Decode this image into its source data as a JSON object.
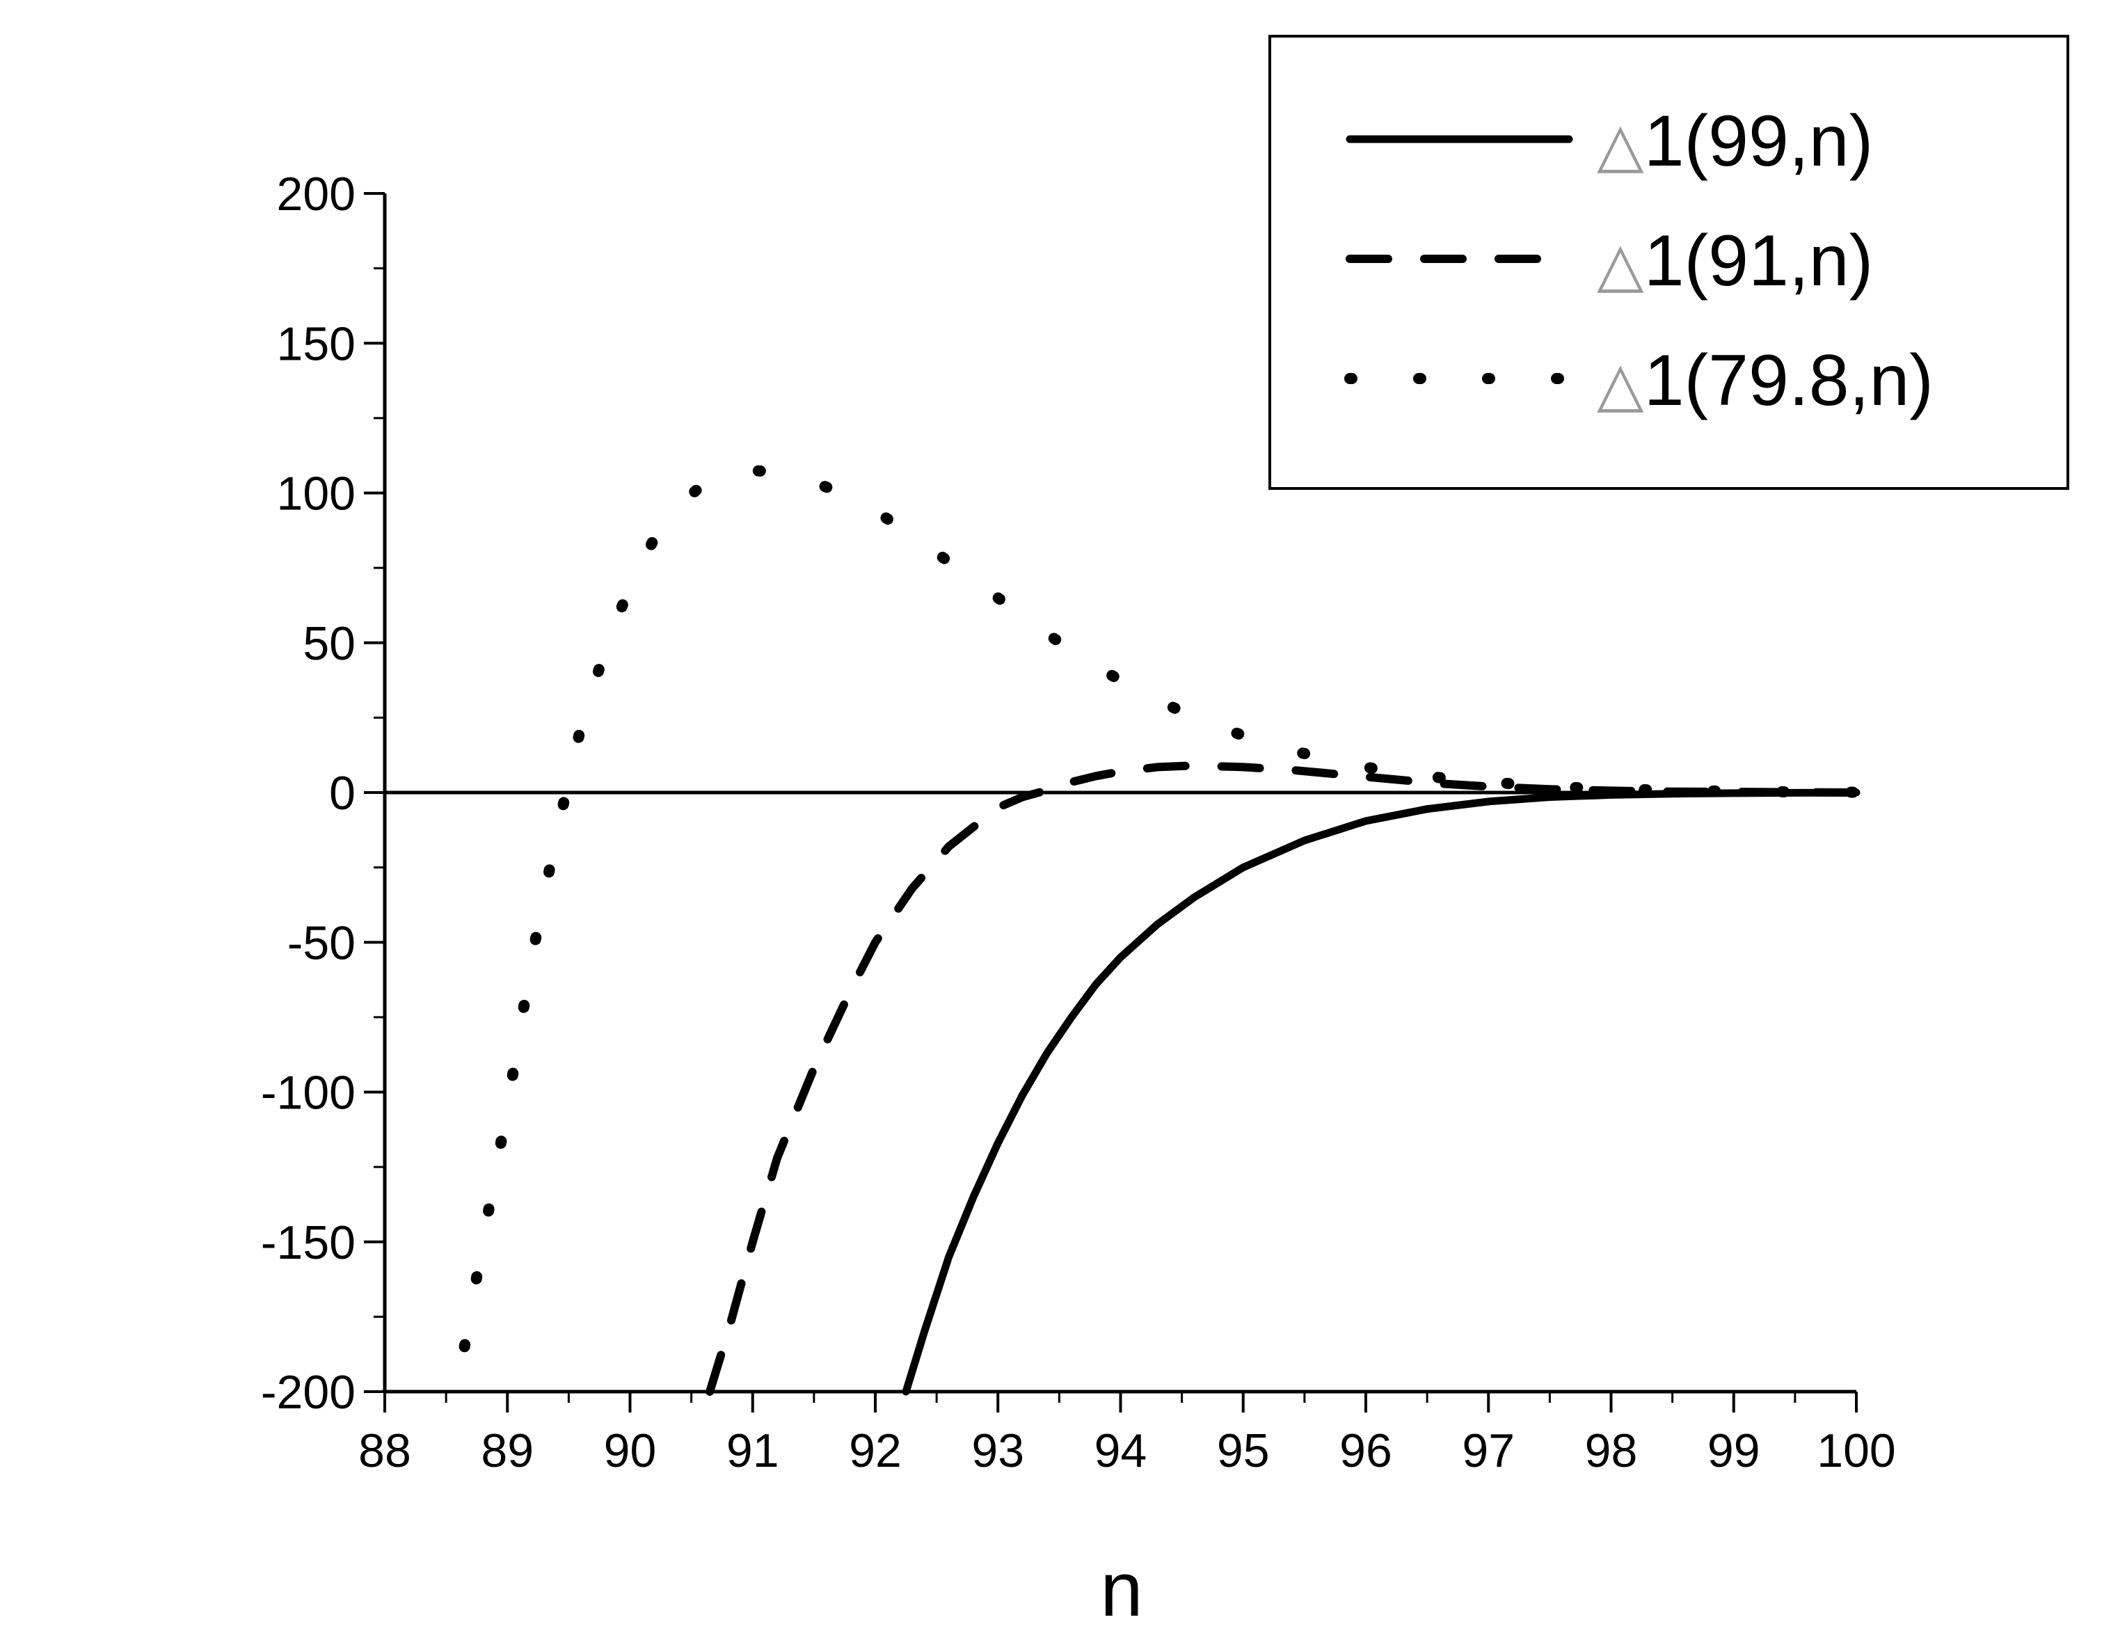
{
  "chart_data": {
    "type": "line",
    "title": "",
    "xlabel": "n",
    "ylabel": "",
    "xlim": [
      88,
      100
    ],
    "ylim": [
      -200,
      200
    ],
    "x_ticks": [
      88,
      89,
      90,
      91,
      92,
      93,
      94,
      95,
      96,
      97,
      98,
      99,
      100
    ],
    "y_ticks": [
      200,
      150,
      100,
      50,
      0,
      -50,
      -100,
      -150,
      -200
    ],
    "zero_line": true,
    "grid": false,
    "legend_position": "top-right",
    "series": [
      {
        "name": "△1(99,n)",
        "style": "solid",
        "x": [
          92.25,
          92.4,
          92.6,
          92.8,
          93.0,
          93.2,
          93.4,
          93.6,
          93.8,
          94.0,
          94.3,
          94.6,
          95.0,
          95.5,
          96.0,
          96.5,
          97.0,
          97.5,
          98.0,
          98.5,
          99.0,
          99.5,
          100.0
        ],
        "y": [
          -200,
          -180,
          -155,
          -135,
          -117,
          -101,
          -87,
          -75,
          -64,
          -55,
          -44,
          -35,
          -25,
          -16,
          -9.5,
          -5.5,
          -3,
          -1.5,
          -0.8,
          -0.4,
          -0.2,
          -0.1,
          0
        ]
      },
      {
        "name": "△1(91,n)",
        "style": "dashed",
        "x": [
          90.65,
          90.8,
          91.0,
          91.2,
          91.5,
          91.8,
          92.0,
          92.3,
          92.6,
          93.0,
          93.2,
          93.4,
          93.6,
          93.8,
          94.0,
          94.3,
          94.6,
          95.0,
          95.4,
          95.8,
          96.2,
          96.6,
          97.0,
          97.5,
          98.0,
          98.5,
          99.0,
          99.5,
          100.0
        ],
        "y": [
          -200,
          -180,
          -150,
          -122,
          -92,
          -66,
          -50,
          -32,
          -18,
          -5,
          -1.5,
          0.8,
          3.5,
          5.5,
          7,
          8.5,
          9,
          8.5,
          7.5,
          6,
          4.5,
          3,
          2,
          1.1,
          0.6,
          0.3,
          0.2,
          0.1,
          0
        ]
      },
      {
        "name": "△1(79.8,n)",
        "style": "dotted",
        "x": [
          88.65,
          88.8,
          89.0,
          89.2,
          89.4,
          89.6,
          89.8,
          90.0,
          90.2,
          90.4,
          90.6,
          90.8,
          91.0,
          91.2,
          91.4,
          91.6,
          91.8,
          92.0,
          92.3,
          92.6,
          93.0,
          93.4,
          93.8,
          94.2,
          94.6,
          95.0,
          95.4,
          95.8,
          96.2,
          96.6,
          97.0,
          97.5,
          98.0,
          98.5,
          99.0,
          99.5,
          100.0
        ],
        "y": [
          -185,
          -150,
          -105,
          -55,
          -14,
          22,
          48,
          69,
          85,
          96,
          103,
          106.5,
          107.5,
          107,
          105,
          102,
          98,
          94,
          86,
          77,
          65,
          53,
          42,
          33,
          25,
          19,
          14,
          10,
          7,
          5,
          3.5,
          2,
          1.2,
          0.7,
          0.4,
          0.2,
          0.1
        ]
      }
    ]
  }
}
